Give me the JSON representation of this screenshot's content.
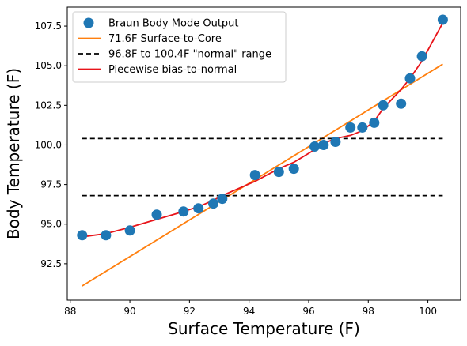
{
  "chart_data": {
    "type": "scatter",
    "title": "",
    "xlabel": "Surface Temperature (F)",
    "ylabel": "Body Temperature (F)",
    "xlim": [
      87.9,
      101.1
    ],
    "ylim": [
      90.2,
      108.7
    ],
    "xticks": [
      88,
      90,
      92,
      94,
      96,
      98,
      100
    ],
    "yticks": [
      92.5,
      95.0,
      97.5,
      100.0,
      102.5,
      105.0,
      107.5
    ],
    "xtick_labels": [
      "88",
      "90",
      "92",
      "94",
      "96",
      "98",
      "100"
    ],
    "ytick_labels": [
      "92.5",
      "95.0",
      "97.5",
      "100.0",
      "102.5",
      "105.0",
      "107.5"
    ],
    "grid": false,
    "legend_position": "upper-left",
    "series": [
      {
        "name": "Braun Body Mode Output",
        "kind": "scatter",
        "color": "#1f77b4",
        "x": [
          88.4,
          89.2,
          90.0,
          90.9,
          91.8,
          92.3,
          92.8,
          93.1,
          94.2,
          95.0,
          95.5,
          96.2,
          96.5,
          96.9,
          97.4,
          97.8,
          98.2,
          98.5,
          99.1,
          99.4,
          99.8,
          100.5
        ],
        "y": [
          94.3,
          94.3,
          94.6,
          95.6,
          95.8,
          96.0,
          96.3,
          96.6,
          98.1,
          98.3,
          98.5,
          99.9,
          100.0,
          100.2,
          101.1,
          101.1,
          101.4,
          102.5,
          102.6,
          104.2,
          105.6,
          107.9
        ]
      },
      {
        "name": "71.6F Surface-to-Core",
        "kind": "line",
        "color": "#ff7f0e",
        "dash": "",
        "x": [
          88.4,
          100.5
        ],
        "y": [
          91.1,
          105.1
        ]
      },
      {
        "name": "96.8F to 100.4F \"normal\" range",
        "kind": "line",
        "color": "#000000",
        "dash": "6,4",
        "x": [
          88.4,
          100.5
        ],
        "y": [
          100.4,
          100.4
        ]
      },
      {
        "name": "",
        "kind": "line",
        "color": "#000000",
        "dash": "6,4",
        "x": [
          88.4,
          100.5
        ],
        "y": [
          96.8,
          96.8
        ]
      },
      {
        "name": "Piecewise bias-to-normal",
        "kind": "line",
        "color": "#e8141a",
        "dash": "",
        "x": [
          88.4,
          89.2,
          90.0,
          90.9,
          91.8,
          92.3,
          92.8,
          93.1,
          94.2,
          95.0,
          95.5,
          96.2,
          96.5,
          96.9,
          97.4,
          97.8,
          98.2,
          98.5,
          99.1,
          99.4,
          99.8,
          100.5
        ],
        "y": [
          94.2,
          94.4,
          94.8,
          95.3,
          95.8,
          96.1,
          96.5,
          96.8,
          97.7,
          98.5,
          98.9,
          99.7,
          100.1,
          100.4,
          100.6,
          100.9,
          101.5,
          102.3,
          103.5,
          104.2,
          105.3,
          107.7
        ]
      }
    ]
  }
}
